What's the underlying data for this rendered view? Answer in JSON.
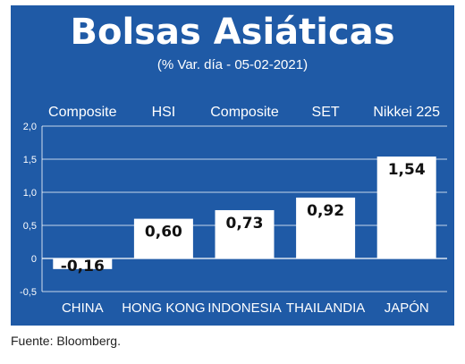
{
  "header": {
    "title": "Bolsas Asiáticas",
    "subtitle": "(% Var. día - 05-02-2021)"
  },
  "footer": {
    "source": "Fuente: Bloomberg."
  },
  "colors": {
    "panel": "#1f5aa6",
    "bar": "#ffffff",
    "gridline": "#ffffff"
  },
  "chart_data": {
    "type": "bar",
    "title": "Bolsas Asiáticas",
    "subtitle": "(% Var. día - 05-02-2021)",
    "categories": [
      "CHINA",
      "HONG KONG",
      "INDONESIA",
      "THAILANDIA",
      "JAPÓN"
    ],
    "index_names": [
      "Composite",
      "HSI",
      "Composite",
      "SET",
      "Nikkei 225"
    ],
    "values": [
      -0.16,
      0.6,
      0.73,
      0.92,
      1.54
    ],
    "value_labels": [
      "-0,16",
      "0,60",
      "0,73",
      "0,92",
      "1,54"
    ],
    "ylim": [
      -0.5,
      2.0
    ],
    "yticks": [
      2.0,
      1.5,
      1.0,
      0.5,
      0,
      -0.5
    ],
    "ytick_labels": [
      "2,0",
      "1,5",
      "1,0",
      "0,5",
      "0",
      "-0,5"
    ],
    "grid": true,
    "xlabel": "",
    "ylabel": ""
  }
}
